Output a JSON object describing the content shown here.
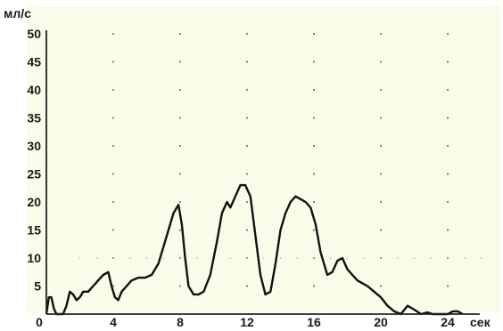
{
  "chart_data": {
    "type": "line",
    "title": "",
    "xlabel": "сек",
    "ylabel": "мл/с",
    "xlim": [
      0,
      27
    ],
    "ylim": [
      0,
      52
    ],
    "x_ticks": [
      0,
      4,
      8,
      12,
      16,
      20,
      24
    ],
    "y_ticks": [
      5,
      10,
      15,
      20,
      25,
      30,
      35,
      40,
      45,
      50
    ],
    "grid": "dotted",
    "colors": {
      "background": "#fbfbe9",
      "line": "#111111",
      "grid": "#7c7c6a",
      "axis": "#222222"
    },
    "series": [
      {
        "x": [
          0,
          0.15,
          0.3,
          0.45,
          0.6,
          0.8,
          1.0,
          1.2,
          1.4,
          1.6,
          1.8,
          2.0,
          2.2,
          2.5,
          2.8,
          3.1,
          3.4,
          3.7,
          3.9,
          4.1,
          4.3,
          4.5,
          4.8,
          5.1,
          5.5,
          5.9,
          6.3,
          6.7,
          7.0,
          7.3,
          7.6,
          7.9,
          8.1,
          8.3,
          8.5,
          8.8,
          9.1,
          9.4,
          9.8,
          10.2,
          10.5,
          10.8,
          11.0,
          11.3,
          11.6,
          11.9,
          12.2,
          12.5,
          12.8,
          13.1,
          13.4,
          13.7,
          14.0,
          14.3,
          14.6,
          14.9,
          15.2,
          15.5,
          15.8,
          16.1,
          16.4,
          16.8,
          17.1,
          17.4,
          17.7,
          18.0,
          18.3,
          18.6,
          18.9,
          19.2,
          19.6,
          20.0,
          20.4,
          20.8,
          21.2,
          21.6,
          22.0,
          22.4,
          22.8,
          23.1,
          23.4,
          23.7,
          24.0,
          24.3,
          24.6,
          24.9
        ],
        "values": [
          0,
          3,
          3,
          1,
          0,
          0,
          0,
          1.5,
          4,
          3.5,
          2.5,
          3,
          4,
          4,
          5,
          6,
          7,
          7.5,
          5,
          3,
          2.5,
          4,
          5,
          6,
          6.5,
          6.5,
          7,
          9,
          12,
          15,
          18,
          19.5,
          16,
          10,
          5,
          3.5,
          3.5,
          4,
          7,
          13,
          18,
          20,
          19,
          21,
          23,
          23,
          21,
          14,
          7,
          3.5,
          4,
          9,
          15,
          18,
          20,
          21,
          20.5,
          20,
          19,
          16,
          11,
          7,
          7.5,
          9.5,
          10,
          8,
          7,
          6,
          5.5,
          5,
          4,
          3,
          1.5,
          0.5,
          0,
          1.5,
          0.8,
          0,
          0.3,
          0,
          0,
          0,
          0,
          0.5,
          0.5,
          0
        ]
      }
    ]
  }
}
